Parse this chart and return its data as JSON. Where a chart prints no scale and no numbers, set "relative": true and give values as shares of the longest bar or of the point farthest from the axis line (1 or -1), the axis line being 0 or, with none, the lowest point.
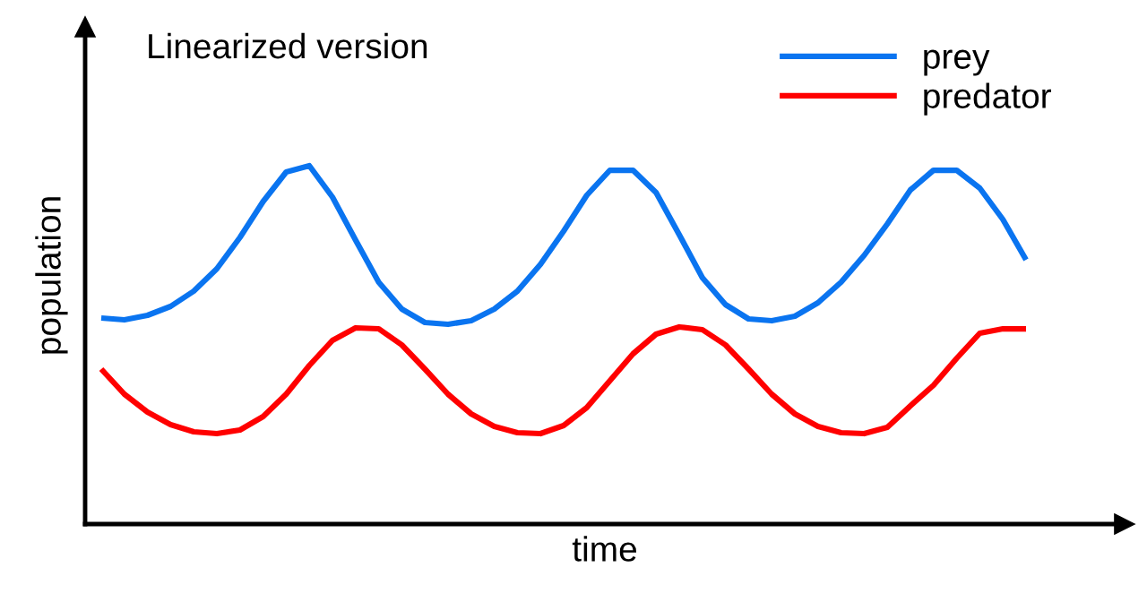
{
  "chart_data": {
    "type": "line",
    "title": "Linearized version",
    "xlabel": "time",
    "ylabel": "population",
    "relative": true,
    "legend": "top right",
    "grid": false,
    "marker": "none",
    "line_style": "solid",
    "categories": [
      null,
      null,
      null,
      null,
      null,
      null,
      null,
      null,
      null,
      null,
      null,
      null,
      null,
      null,
      null,
      null,
      null,
      null,
      null,
      null,
      null,
      null,
      null,
      null,
      null,
      null,
      null,
      null,
      null,
      null,
      null,
      null,
      null,
      null,
      null,
      null,
      null,
      null,
      null,
      null,
      null
    ],
    "series": [
      {
        "name": "prey",
        "color": "#0a74f0",
        "values": [
          0.575,
          0.57,
          0.5825,
          0.6075,
          0.65,
          0.7125,
          0.8,
          0.9,
          0.9825,
          1.0,
          0.9125,
          0.7925,
          0.675,
          0.6,
          0.5625,
          0.5575,
          0.5675,
          0.6,
          0.65,
          0.725,
          0.8175,
          0.9175,
          0.9875,
          0.9875,
          0.925,
          0.8075,
          0.6875,
          0.6125,
          0.5725,
          0.5675,
          0.58,
          0.6175,
          0.675,
          0.75,
          0.8375,
          0.9325,
          0.9875,
          0.9875,
          0.9375,
          0.85,
          0.7375
        ]
      },
      {
        "name": "predator",
        "color": "#ff0000",
        "values": [
          0.4325,
          0.3625,
          0.3125,
          0.2775,
          0.2575,
          0.2525,
          0.2625,
          0.3,
          0.3625,
          0.4425,
          0.5125,
          0.5475,
          0.545,
          0.5,
          0.4325,
          0.3625,
          0.3075,
          0.2725,
          0.255,
          0.2525,
          0.275,
          0.325,
          0.4,
          0.475,
          0.53,
          0.55,
          0.5425,
          0.5,
          0.4325,
          0.3625,
          0.3075,
          0.2725,
          0.255,
          0.2525,
          0.27,
          0.33,
          0.3875,
          0.4625,
          0.5325,
          0.545,
          0.545
        ]
      }
    ]
  }
}
